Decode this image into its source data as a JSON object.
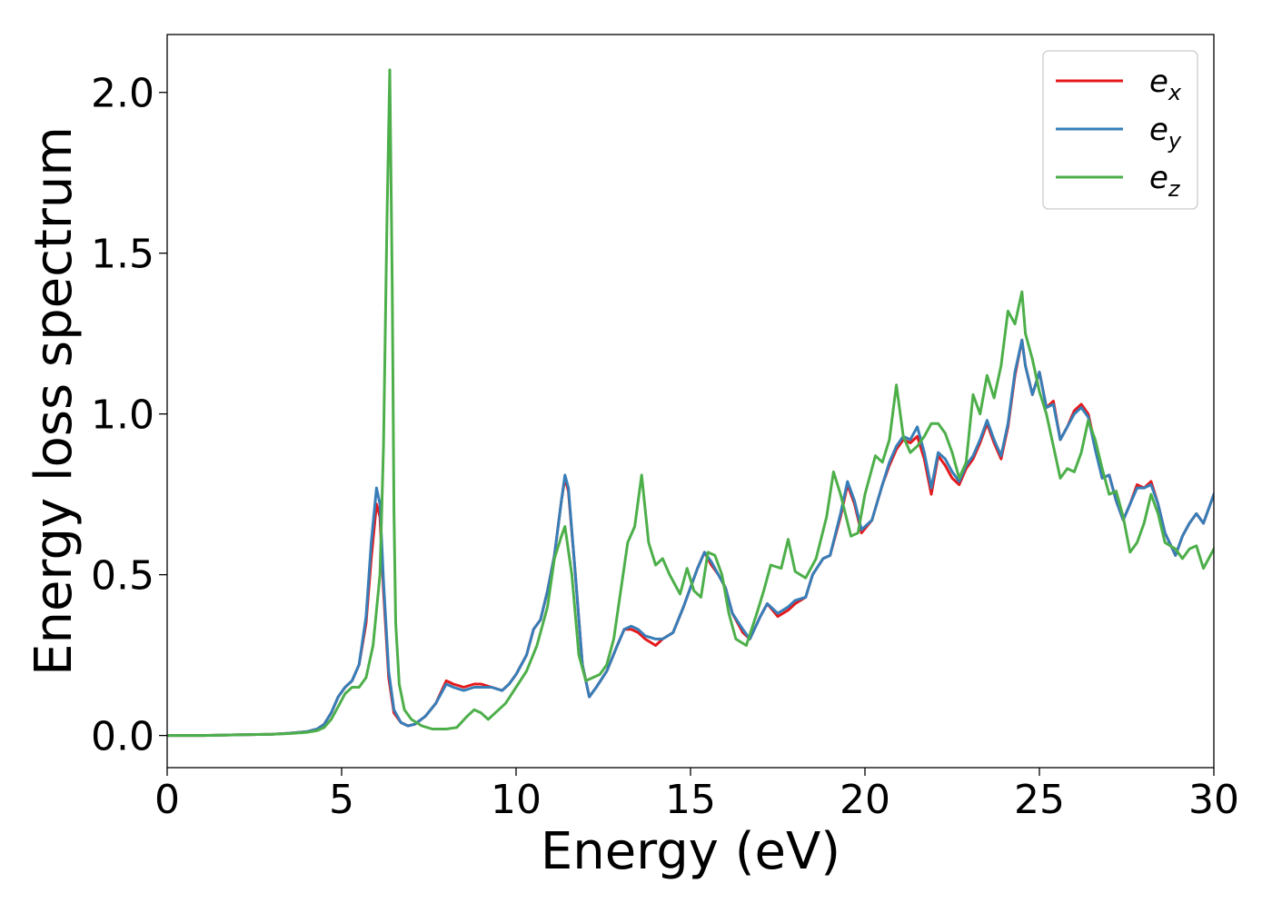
{
  "chart_data": {
    "type": "line",
    "xlabel": "Energy (eV)",
    "ylabel": "Energy loss spectrum",
    "xlim": [
      0,
      30
    ],
    "ylim": [
      -0.1,
      2.18
    ],
    "xticks": [
      0,
      5,
      10,
      15,
      20,
      25,
      30
    ],
    "xtick_labels": [
      "0",
      "5",
      "10",
      "15",
      "20",
      "25",
      "30"
    ],
    "yticks": [
      0.0,
      0.5,
      1.0,
      1.5,
      2.0
    ],
    "ytick_labels": [
      "0.0",
      "0.5",
      "1.0",
      "1.5",
      "2.0"
    ],
    "grid": false,
    "legend_position": "top-right",
    "series": [
      {
        "name": "e",
        "subscript": "x",
        "color": "#e41a1c",
        "x": [
          0,
          1,
          2,
          3,
          3.5,
          4,
          4.3,
          4.5,
          4.7,
          4.9,
          5.1,
          5.3,
          5.5,
          5.7,
          5.85,
          6.0,
          6.1,
          6.2,
          6.35,
          6.5,
          6.7,
          6.9,
          7.1,
          7.4,
          7.7,
          8.0,
          8.2,
          8.5,
          8.8,
          9.0,
          9.3,
          9.6,
          9.8,
          10.0,
          10.3,
          10.5,
          10.7,
          10.9,
          11.1,
          11.3,
          11.4,
          11.5,
          11.7,
          11.9,
          12.1,
          12.3,
          12.6,
          12.9,
          13.1,
          13.3,
          13.5,
          13.7,
          14.0,
          14.2,
          14.5,
          14.8,
          15.0,
          15.2,
          15.4,
          15.6,
          15.8,
          16.0,
          16.2,
          16.5,
          16.7,
          17.0,
          17.2,
          17.5,
          17.8,
          18.0,
          18.3,
          18.5,
          18.8,
          19.0,
          19.3,
          19.5,
          19.7,
          19.9,
          20.2,
          20.5,
          20.7,
          20.9,
          21.1,
          21.3,
          21.5,
          21.7,
          21.9,
          22.1,
          22.3,
          22.5,
          22.7,
          22.9,
          23.1,
          23.3,
          23.5,
          23.7,
          23.9,
          24.1,
          24.3,
          24.5,
          24.6,
          24.8,
          25.0,
          25.2,
          25.4,
          25.6,
          25.8,
          26.0,
          26.2,
          26.4,
          26.6,
          26.8,
          27.0,
          27.2,
          27.4,
          27.6,
          27.8,
          28.0,
          28.2,
          28.4,
          28.6,
          28.9,
          29.1,
          29.3,
          29.5,
          29.7,
          30.0
        ],
        "values": [
          0.0,
          0.0,
          0.002,
          0.004,
          0.007,
          0.012,
          0.02,
          0.035,
          0.07,
          0.12,
          0.15,
          0.17,
          0.22,
          0.35,
          0.55,
          0.72,
          0.68,
          0.45,
          0.18,
          0.07,
          0.04,
          0.03,
          0.035,
          0.06,
          0.1,
          0.17,
          0.16,
          0.15,
          0.16,
          0.16,
          0.15,
          0.14,
          0.16,
          0.19,
          0.25,
          0.33,
          0.36,
          0.45,
          0.56,
          0.73,
          0.8,
          0.76,
          0.5,
          0.22,
          0.12,
          0.15,
          0.2,
          0.28,
          0.33,
          0.33,
          0.32,
          0.3,
          0.28,
          0.3,
          0.32,
          0.4,
          0.46,
          0.52,
          0.57,
          0.53,
          0.5,
          0.46,
          0.38,
          0.32,
          0.3,
          0.37,
          0.41,
          0.37,
          0.39,
          0.41,
          0.43,
          0.5,
          0.55,
          0.56,
          0.68,
          0.78,
          0.72,
          0.63,
          0.67,
          0.78,
          0.84,
          0.89,
          0.92,
          0.91,
          0.93,
          0.86,
          0.75,
          0.87,
          0.84,
          0.8,
          0.78,
          0.83,
          0.86,
          0.91,
          0.97,
          0.91,
          0.86,
          0.96,
          1.12,
          1.23,
          1.15,
          1.06,
          1.13,
          1.02,
          1.04,
          0.92,
          0.96,
          1.01,
          1.03,
          1.0,
          0.9,
          0.8,
          0.81,
          0.73,
          0.67,
          0.72,
          0.78,
          0.77,
          0.79,
          0.72,
          0.63,
          0.56,
          0.62,
          0.66,
          0.69,
          0.66,
          0.75
        ]
      },
      {
        "name": "e",
        "subscript": "y",
        "color": "#377eb8",
        "x": [
          0,
          1,
          2,
          3,
          3.5,
          4,
          4.3,
          4.5,
          4.7,
          4.9,
          5.1,
          5.3,
          5.5,
          5.7,
          5.85,
          6.0,
          6.1,
          6.2,
          6.35,
          6.5,
          6.7,
          6.9,
          7.1,
          7.4,
          7.7,
          8.0,
          8.2,
          8.5,
          8.8,
          9.0,
          9.3,
          9.6,
          9.8,
          10.0,
          10.3,
          10.5,
          10.7,
          10.9,
          11.1,
          11.3,
          11.4,
          11.5,
          11.7,
          11.9,
          12.1,
          12.3,
          12.6,
          12.9,
          13.1,
          13.3,
          13.5,
          13.7,
          14.0,
          14.2,
          14.5,
          14.8,
          15.0,
          15.2,
          15.4,
          15.6,
          15.8,
          16.0,
          16.2,
          16.5,
          16.7,
          17.0,
          17.2,
          17.5,
          17.8,
          18.0,
          18.3,
          18.5,
          18.8,
          19.0,
          19.3,
          19.5,
          19.7,
          19.9,
          20.2,
          20.5,
          20.7,
          20.9,
          21.1,
          21.3,
          21.5,
          21.7,
          21.9,
          22.1,
          22.3,
          22.5,
          22.7,
          22.9,
          23.1,
          23.3,
          23.5,
          23.7,
          23.9,
          24.1,
          24.3,
          24.5,
          24.6,
          24.8,
          25.0,
          25.2,
          25.4,
          25.6,
          25.8,
          26.0,
          26.2,
          26.4,
          26.6,
          26.8,
          27.0,
          27.2,
          27.4,
          27.6,
          27.8,
          28.0,
          28.2,
          28.4,
          28.6,
          28.9,
          29.1,
          29.3,
          29.5,
          29.7,
          30.0
        ],
        "values": [
          0.0,
          0.0,
          0.002,
          0.004,
          0.007,
          0.012,
          0.02,
          0.035,
          0.07,
          0.12,
          0.15,
          0.17,
          0.22,
          0.37,
          0.6,
          0.77,
          0.72,
          0.48,
          0.2,
          0.08,
          0.04,
          0.03,
          0.035,
          0.06,
          0.1,
          0.16,
          0.15,
          0.14,
          0.15,
          0.15,
          0.15,
          0.14,
          0.16,
          0.19,
          0.25,
          0.33,
          0.36,
          0.45,
          0.56,
          0.73,
          0.81,
          0.77,
          0.5,
          0.22,
          0.12,
          0.15,
          0.2,
          0.28,
          0.33,
          0.34,
          0.33,
          0.31,
          0.3,
          0.3,
          0.32,
          0.4,
          0.46,
          0.52,
          0.57,
          0.54,
          0.5,
          0.46,
          0.38,
          0.33,
          0.3,
          0.37,
          0.41,
          0.38,
          0.4,
          0.42,
          0.43,
          0.5,
          0.55,
          0.56,
          0.69,
          0.79,
          0.73,
          0.64,
          0.67,
          0.78,
          0.85,
          0.9,
          0.93,
          0.92,
          0.96,
          0.88,
          0.77,
          0.88,
          0.86,
          0.82,
          0.79,
          0.84,
          0.87,
          0.92,
          0.98,
          0.92,
          0.87,
          0.97,
          1.13,
          1.23,
          1.15,
          1.06,
          1.13,
          1.02,
          1.03,
          0.92,
          0.96,
          1.0,
          1.02,
          0.99,
          0.89,
          0.8,
          0.81,
          0.73,
          0.67,
          0.72,
          0.77,
          0.77,
          0.78,
          0.72,
          0.63,
          0.56,
          0.62,
          0.66,
          0.69,
          0.66,
          0.75
        ]
      },
      {
        "name": "e",
        "subscript": "z",
        "color": "#4daf4a",
        "x": [
          0,
          1,
          2,
          3,
          3.5,
          4,
          4.3,
          4.5,
          4.7,
          4.9,
          5.1,
          5.3,
          5.5,
          5.7,
          5.9,
          6.1,
          6.2,
          6.3,
          6.38,
          6.45,
          6.5,
          6.55,
          6.65,
          6.8,
          7.0,
          7.3,
          7.6,
          8.0,
          8.3,
          8.6,
          8.8,
          9.0,
          9.2,
          9.4,
          9.7,
          10.0,
          10.3,
          10.6,
          10.9,
          11.1,
          11.3,
          11.4,
          11.6,
          11.8,
          12.0,
          12.2,
          12.4,
          12.6,
          12.8,
          13.0,
          13.2,
          13.4,
          13.6,
          13.8,
          14.0,
          14.2,
          14.4,
          14.7,
          14.9,
          15.1,
          15.3,
          15.5,
          15.7,
          15.9,
          16.1,
          16.3,
          16.6,
          16.9,
          17.1,
          17.3,
          17.6,
          17.8,
          18.0,
          18.3,
          18.6,
          18.9,
          19.1,
          19.3,
          19.6,
          19.8,
          20.0,
          20.3,
          20.5,
          20.7,
          20.9,
          21.1,
          21.3,
          21.5,
          21.7,
          21.9,
          22.1,
          22.3,
          22.5,
          22.7,
          22.9,
          23.1,
          23.3,
          23.5,
          23.7,
          23.9,
          24.1,
          24.3,
          24.5,
          24.6,
          24.8,
          25.0,
          25.2,
          25.4,
          25.6,
          25.8,
          26.0,
          26.2,
          26.4,
          26.6,
          26.8,
          27.0,
          27.2,
          27.4,
          27.6,
          27.8,
          28.0,
          28.2,
          28.4,
          28.6,
          28.9,
          29.1,
          29.3,
          29.5,
          29.7,
          30.0
        ],
        "values": [
          0.0,
          0.0,
          0.002,
          0.004,
          0.006,
          0.01,
          0.015,
          0.025,
          0.05,
          0.09,
          0.13,
          0.15,
          0.15,
          0.18,
          0.28,
          0.5,
          0.9,
          1.6,
          2.07,
          1.4,
          0.7,
          0.35,
          0.16,
          0.08,
          0.05,
          0.03,
          0.02,
          0.02,
          0.025,
          0.06,
          0.08,
          0.07,
          0.05,
          0.07,
          0.1,
          0.15,
          0.2,
          0.28,
          0.4,
          0.55,
          0.62,
          0.65,
          0.5,
          0.25,
          0.17,
          0.18,
          0.19,
          0.22,
          0.3,
          0.45,
          0.6,
          0.65,
          0.81,
          0.6,
          0.53,
          0.55,
          0.5,
          0.44,
          0.52,
          0.45,
          0.43,
          0.57,
          0.56,
          0.5,
          0.38,
          0.3,
          0.28,
          0.38,
          0.45,
          0.53,
          0.52,
          0.61,
          0.51,
          0.49,
          0.55,
          0.68,
          0.82,
          0.75,
          0.62,
          0.63,
          0.75,
          0.87,
          0.85,
          0.92,
          1.09,
          0.93,
          0.88,
          0.9,
          0.93,
          0.97,
          0.97,
          0.94,
          0.88,
          0.8,
          0.85,
          1.06,
          1.0,
          1.12,
          1.05,
          1.15,
          1.32,
          1.28,
          1.38,
          1.25,
          1.17,
          1.07,
          1.0,
          0.9,
          0.8,
          0.83,
          0.82,
          0.88,
          0.98,
          0.92,
          0.83,
          0.75,
          0.76,
          0.68,
          0.57,
          0.6,
          0.66,
          0.75,
          0.69,
          0.6,
          0.58,
          0.55,
          0.58,
          0.59,
          0.52,
          0.58
        ]
      }
    ]
  }
}
